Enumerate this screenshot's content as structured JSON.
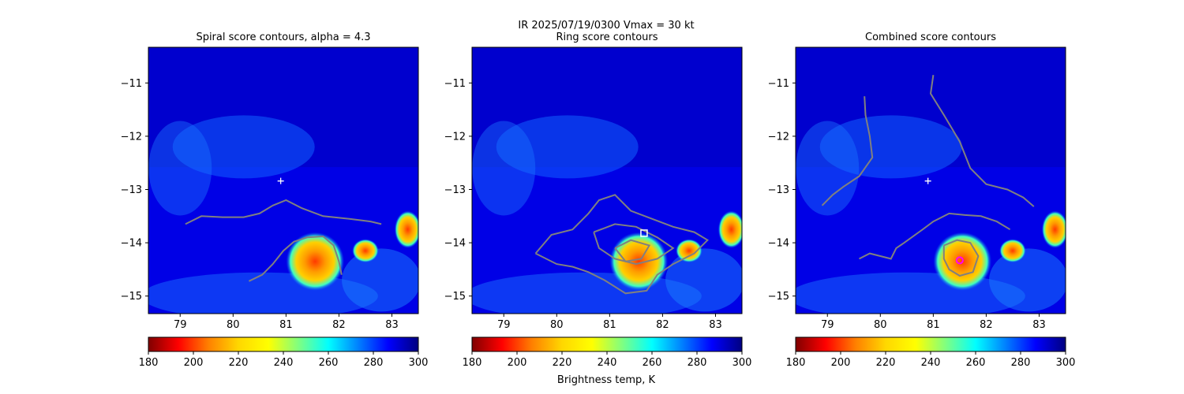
{
  "suptitle": "IR  2025/07/19/0300    Vmax = 30 kt",
  "colorbar_label": "Brightness temp, K",
  "colormap": [
    "#800000",
    "#ff0000",
    "#ff8000",
    "#ffd700",
    "#ffff00",
    "#80ff80",
    "#00ffff",
    "#0080ff",
    "#0000ff",
    "#000080"
  ],
  "contour_color": "#808080",
  "chart_data": [
    {
      "type": "heatmap",
      "title": "Spiral score contours, alpha =  4.3",
      "xlim": [
        78.4,
        83.5
      ],
      "ylim": [
        -15.33,
        -10.33
      ],
      "xticks": [
        79,
        80,
        81,
        82,
        83
      ],
      "yticks": [
        -11,
        -12,
        -13,
        -14,
        -15
      ],
      "xtick_labels": [
        "79",
        "80",
        "81",
        "82",
        "83"
      ],
      "ytick_labels": [
        "−11",
        "−12",
        "−13",
        "−14",
        "−15"
      ],
      "colorbar": {
        "vmin": 180,
        "vmax": 300,
        "ticks": [
          180,
          200,
          220,
          240,
          260,
          280,
          300
        ]
      },
      "center_marker": {
        "symbol": "+",
        "lon": 80.9,
        "lat": -12.84,
        "color": "#ffffff"
      },
      "contours": [
        [
          [
            79.1,
            -13.65
          ],
          [
            79.4,
            -13.5
          ],
          [
            79.8,
            -13.52
          ],
          [
            80.2,
            -13.52
          ],
          [
            80.5,
            -13.45
          ],
          [
            80.75,
            -13.3
          ],
          [
            81.0,
            -13.2
          ],
          [
            81.3,
            -13.35
          ],
          [
            81.7,
            -13.5
          ],
          [
            82.2,
            -13.55
          ],
          [
            82.6,
            -13.6
          ],
          [
            82.8,
            -13.65
          ]
        ],
        [
          [
            80.3,
            -14.72
          ],
          [
            80.55,
            -14.6
          ],
          [
            80.75,
            -14.4
          ],
          [
            80.95,
            -14.15
          ],
          [
            81.15,
            -13.98
          ],
          [
            81.4,
            -13.9
          ],
          [
            81.7,
            -13.88
          ],
          [
            81.9,
            -14.05
          ],
          [
            82.0,
            -14.35
          ],
          [
            82.05,
            -14.6
          ]
        ]
      ],
      "hot_regions": [
        {
          "lon": 81.55,
          "lat": -14.35,
          "rx": 0.55,
          "ry": 0.55,
          "temp": 205
        },
        {
          "lon": 83.3,
          "lat": -13.75,
          "rx": 0.25,
          "ry": 0.35,
          "temp": 215
        },
        {
          "lon": 82.5,
          "lat": -14.15,
          "rx": 0.25,
          "ry": 0.22,
          "temp": 225
        }
      ]
    },
    {
      "type": "heatmap",
      "title": "Ring score contours",
      "xlim": [
        78.4,
        83.5
      ],
      "ylim": [
        -15.33,
        -10.33
      ],
      "xticks": [
        79,
        80,
        81,
        82,
        83
      ],
      "yticks": [
        -11,
        -12,
        -13,
        -14,
        -15
      ],
      "xtick_labels": [
        "79",
        "80",
        "81",
        "82",
        "83"
      ],
      "ytick_labels": [
        "−11",
        "−12",
        "−13",
        "−14",
        "−15"
      ],
      "colorbar": {
        "vmin": 180,
        "vmax": 300,
        "ticks": [
          180,
          200,
          220,
          240,
          260,
          280,
          300
        ]
      },
      "center_marker": {
        "symbol": "square",
        "lon": 81.65,
        "lat": -13.82,
        "color": "#ffffff"
      },
      "contours": [
        [
          [
            79.6,
            -14.2
          ],
          [
            79.9,
            -13.85
          ],
          [
            80.3,
            -13.75
          ],
          [
            80.6,
            -13.45
          ],
          [
            80.8,
            -13.2
          ],
          [
            81.1,
            -13.1
          ],
          [
            81.4,
            -13.4
          ],
          [
            81.8,
            -13.55
          ],
          [
            82.2,
            -13.7
          ],
          [
            82.6,
            -13.8
          ],
          [
            82.85,
            -13.95
          ],
          [
            82.6,
            -14.2
          ],
          [
            82.2,
            -14.4
          ],
          [
            81.9,
            -14.6
          ],
          [
            81.7,
            -14.9
          ],
          [
            81.3,
            -14.95
          ],
          [
            80.9,
            -14.7
          ],
          [
            80.6,
            -14.55
          ],
          [
            80.3,
            -14.45
          ],
          [
            80.0,
            -14.4
          ],
          [
            79.6,
            -14.2
          ]
        ],
        [
          [
            80.7,
            -13.8
          ],
          [
            81.1,
            -13.65
          ],
          [
            81.5,
            -13.7
          ],
          [
            81.9,
            -13.9
          ],
          [
            82.2,
            -14.1
          ],
          [
            81.9,
            -14.3
          ],
          [
            81.5,
            -14.4
          ],
          [
            81.1,
            -14.3
          ],
          [
            80.8,
            -14.1
          ],
          [
            80.7,
            -13.8
          ]
        ],
        [
          [
            81.1,
            -14.1
          ],
          [
            81.4,
            -13.95
          ],
          [
            81.75,
            -14.05
          ],
          [
            81.6,
            -14.3
          ],
          [
            81.3,
            -14.35
          ],
          [
            81.1,
            -14.1
          ]
        ]
      ],
      "hot_regions": [
        {
          "lon": 81.55,
          "lat": -14.35,
          "rx": 0.55,
          "ry": 0.55,
          "temp": 205
        },
        {
          "lon": 83.3,
          "lat": -13.75,
          "rx": 0.25,
          "ry": 0.35,
          "temp": 215
        },
        {
          "lon": 82.5,
          "lat": -14.15,
          "rx": 0.25,
          "ry": 0.22,
          "temp": 225
        }
      ]
    },
    {
      "type": "heatmap",
      "title": "Combined score contours",
      "xlim": [
        78.4,
        83.5
      ],
      "ylim": [
        -15.33,
        -10.33
      ],
      "xticks": [
        79,
        80,
        81,
        82,
        83
      ],
      "yticks": [
        -11,
        -12,
        -13,
        -14,
        -15
      ],
      "xtick_labels": [
        "79",
        "80",
        "81",
        "82",
        "83"
      ],
      "ytick_labels": [
        "−11",
        "−12",
        "−13",
        "−14",
        "−15"
      ],
      "colorbar": {
        "vmin": 180,
        "vmax": 300,
        "ticks": [
          180,
          200,
          220,
          240,
          260,
          280,
          300
        ]
      },
      "center_marker": {
        "symbol": "+",
        "lon": 80.9,
        "lat": -12.84,
        "color": "#ffffff"
      },
      "best_marker": {
        "symbol": "circle",
        "lon": 81.5,
        "lat": -14.33,
        "color": "#ff00ff"
      },
      "contours": [
        [
          [
            79.7,
            -11.25
          ],
          [
            79.72,
            -11.6
          ],
          [
            79.8,
            -12.0
          ],
          [
            79.85,
            -12.4
          ],
          [
            79.6,
            -12.75
          ],
          [
            79.3,
            -12.95
          ],
          [
            79.1,
            -13.1
          ],
          [
            78.9,
            -13.3
          ]
        ],
        [
          [
            81.0,
            -10.85
          ],
          [
            80.95,
            -11.2
          ],
          [
            81.2,
            -11.6
          ],
          [
            81.5,
            -12.1
          ],
          [
            81.7,
            -12.6
          ],
          [
            82.0,
            -12.9
          ],
          [
            82.4,
            -13.0
          ],
          [
            82.7,
            -13.15
          ],
          [
            82.9,
            -13.32
          ]
        ],
        [
          [
            79.6,
            -14.3
          ],
          [
            79.8,
            -14.2
          ],
          [
            80.0,
            -14.25
          ],
          [
            80.2,
            -14.3
          ],
          [
            80.3,
            -14.1
          ],
          [
            80.45,
            -14.0
          ],
          [
            80.8,
            -13.75
          ],
          [
            81.0,
            -13.6
          ],
          [
            81.3,
            -13.45
          ],
          [
            81.6,
            -13.48
          ],
          [
            81.9,
            -13.5
          ],
          [
            82.2,
            -13.6
          ],
          [
            82.45,
            -13.75
          ]
        ],
        [
          [
            81.2,
            -14.05
          ],
          [
            81.45,
            -13.95
          ],
          [
            81.7,
            -14.0
          ],
          [
            81.85,
            -14.25
          ],
          [
            81.75,
            -14.55
          ],
          [
            81.5,
            -14.62
          ],
          [
            81.3,
            -14.5
          ],
          [
            81.2,
            -14.3
          ],
          [
            81.2,
            -14.05
          ]
        ]
      ],
      "hot_regions": [
        {
          "lon": 81.55,
          "lat": -14.35,
          "rx": 0.55,
          "ry": 0.55,
          "temp": 205
        },
        {
          "lon": 83.3,
          "lat": -13.75,
          "rx": 0.25,
          "ry": 0.35,
          "temp": 215
        },
        {
          "lon": 82.5,
          "lat": -14.15,
          "rx": 0.25,
          "ry": 0.22,
          "temp": 225
        }
      ]
    }
  ]
}
